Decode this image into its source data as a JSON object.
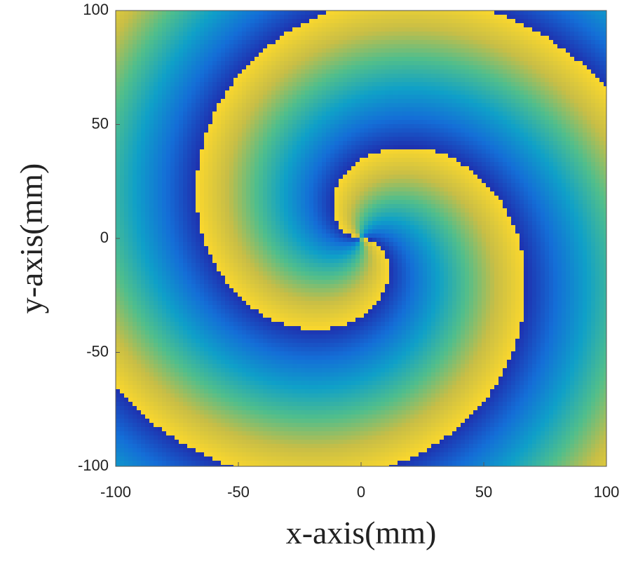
{
  "chart_data": {
    "type": "image",
    "x_label": "x-axis(mm)",
    "y_label": "y-axis(mm)",
    "xlim": [
      -100,
      100
    ],
    "ylim": [
      -100,
      100
    ],
    "xticks": [
      -100,
      -50,
      0,
      50,
      100
    ],
    "yticks": [
      -100,
      -50,
      0,
      50,
      100
    ]
  }
}
